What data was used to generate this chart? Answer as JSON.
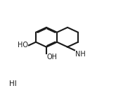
{
  "bg_color": "#ffffff",
  "line_color": "#1a1a1a",
  "line_width": 1.5,
  "text_color": "#1a1a1a",
  "HI_label": "HI",
  "NH_label": "NH",
  "OH_label1": "HO",
  "OH_label2": "OH",
  "font_size": 7
}
